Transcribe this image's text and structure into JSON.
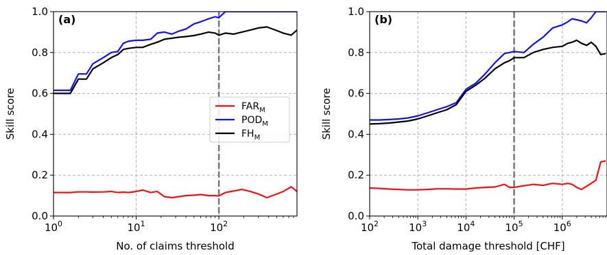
{
  "chart_data": [
    {
      "type": "line",
      "panel_label": "(a)",
      "xlabel": "No. of claims threshold",
      "ylabel": "Skill score",
      "xscale": "log",
      "xlim": [
        1,
        880
      ],
      "ylim": [
        0.0,
        1.0
      ],
      "x_ticks": [
        1,
        10,
        100
      ],
      "x_tick_labels": [
        {
          "base": "10",
          "exp": "0"
        },
        {
          "base": "10",
          "exp": "1"
        },
        {
          "base": "10",
          "exp": "2"
        }
      ],
      "y_ticks": [
        0.0,
        0.2,
        0.4,
        0.6,
        0.8,
        1.0
      ],
      "y_tick_labels": [
        "0.0",
        "0.2",
        "0.4",
        "0.6",
        "0.8",
        "1.0"
      ],
      "grid": true,
      "vline_x": 100,
      "legend": {
        "placement": "center-right",
        "entries": [
          {
            "base": "FAR",
            "sub": "M",
            "color": "#ee1111"
          },
          {
            "base": "POD",
            "sub": "M",
            "color": "#1111ee"
          },
          {
            "base": "FH",
            "sub": "M",
            "color": "#000000"
          }
        ]
      },
      "series": [
        {
          "key": "FAR",
          "color": "#ee1111",
          "x": [
            1,
            1.6,
            2,
            2.5,
            3,
            4,
            5,
            6,
            7,
            8,
            10,
            12,
            15,
            18,
            22,
            27,
            33,
            40,
            50,
            60,
            75,
            90,
            100,
            120,
            150,
            190,
            240,
            300,
            380,
            480,
            600,
            750,
            880
          ],
          "y": [
            0.115,
            0.115,
            0.118,
            0.118,
            0.117,
            0.118,
            0.12,
            0.115,
            0.117,
            0.115,
            0.12,
            0.127,
            0.115,
            0.12,
            0.095,
            0.09,
            0.095,
            0.1,
            0.102,
            0.105,
            0.1,
            0.1,
            0.098,
            0.115,
            0.122,
            0.13,
            0.12,
            0.108,
            0.09,
            0.105,
            0.12,
            0.143,
            0.12
          ]
        },
        {
          "key": "POD",
          "color": "#1111ee",
          "x": [
            1,
            1.6,
            2,
            2.5,
            3,
            4,
            5,
            6,
            7,
            8,
            10,
            12,
            15,
            18,
            22,
            27,
            33,
            40,
            50,
            60,
            75,
            90,
            100,
            120,
            150,
            190,
            240,
            300,
            380,
            480,
            600,
            750,
            880
          ],
          "y": [
            0.615,
            0.615,
            0.695,
            0.695,
            0.745,
            0.775,
            0.8,
            0.805,
            0.845,
            0.855,
            0.86,
            0.86,
            0.865,
            0.895,
            0.9,
            0.89,
            0.905,
            0.915,
            0.94,
            0.95,
            0.965,
            0.975,
            0.97,
            1.0,
            1.0,
            1.0,
            1.0,
            1.0,
            1.0,
            1.0,
            1.0,
            1.0,
            1.0
          ]
        },
        {
          "key": "FH",
          "color": "#000000",
          "x": [
            1,
            1.6,
            2,
            2.5,
            3,
            4,
            5,
            6,
            7,
            8,
            10,
            12,
            15,
            18,
            22,
            27,
            33,
            40,
            50,
            60,
            75,
            90,
            100,
            120,
            150,
            190,
            240,
            300,
            380,
            480,
            600,
            750,
            880
          ],
          "y": [
            0.6,
            0.6,
            0.67,
            0.67,
            0.72,
            0.75,
            0.775,
            0.79,
            0.815,
            0.82,
            0.825,
            0.825,
            0.84,
            0.85,
            0.865,
            0.87,
            0.875,
            0.878,
            0.883,
            0.89,
            0.9,
            0.895,
            0.885,
            0.895,
            0.89,
            0.9,
            0.91,
            0.92,
            0.925,
            0.91,
            0.895,
            0.885,
            0.91
          ]
        }
      ]
    },
    {
      "type": "line",
      "panel_label": "(b)",
      "xlabel": "Total damage threshold [CHF]",
      "ylabel": "Skill score",
      "xscale": "log",
      "xlim": [
        100,
        8500000
      ],
      "ylim": [
        0.0,
        1.0
      ],
      "x_ticks": [
        100,
        1000,
        10000,
        100000,
        1000000
      ],
      "x_tick_labels": [
        {
          "base": "10",
          "exp": "2"
        },
        {
          "base": "10",
          "exp": "3"
        },
        {
          "base": "10",
          "exp": "4"
        },
        {
          "base": "10",
          "exp": "5"
        },
        {
          "base": "10",
          "exp": "6"
        }
      ],
      "y_ticks": [
        0.0,
        0.2,
        0.4,
        0.6,
        0.8,
        1.0
      ],
      "y_tick_labels": [
        "0.0",
        "0.2",
        "0.4",
        "0.6",
        "0.8",
        "1.0"
      ],
      "grid": true,
      "vline_x": 100000,
      "series": [
        {
          "key": "FAR",
          "color": "#ee1111",
          "x": [
            100,
            160,
            250,
            400,
            630,
            1000,
            1600,
            2500,
            4000,
            6300,
            10000,
            16000,
            25000,
            40000,
            63000,
            80000,
            100000,
            160000,
            250000,
            400000,
            630000,
            1000000,
            1300000,
            1600000,
            2000000,
            2500000,
            3200000,
            4000000,
            5000000,
            6300000,
            8000000
          ],
          "y": [
            0.137,
            0.135,
            0.132,
            0.13,
            0.128,
            0.128,
            0.13,
            0.133,
            0.133,
            0.132,
            0.132,
            0.137,
            0.14,
            0.142,
            0.155,
            0.14,
            0.14,
            0.148,
            0.155,
            0.15,
            0.16,
            0.155,
            0.16,
            0.155,
            0.14,
            0.13,
            0.145,
            0.16,
            0.175,
            0.265,
            0.27
          ]
        },
        {
          "key": "POD",
          "color": "#1111ee",
          "x": [
            100,
            160,
            250,
            400,
            630,
            1000,
            1600,
            2500,
            4000,
            6300,
            10000,
            16000,
            25000,
            40000,
            63000,
            80000,
            100000,
            160000,
            250000,
            400000,
            630000,
            1000000,
            1300000,
            1600000,
            2000000,
            2500000,
            3200000,
            4000000,
            5000000,
            6300000,
            8000000
          ],
          "y": [
            0.47,
            0.47,
            0.472,
            0.475,
            0.48,
            0.49,
            0.505,
            0.52,
            0.535,
            0.555,
            0.62,
            0.65,
            0.695,
            0.75,
            0.795,
            0.8,
            0.805,
            0.8,
            0.84,
            0.875,
            0.92,
            0.935,
            0.95,
            0.965,
            0.96,
            0.955,
            0.945,
            0.97,
            1.0,
            1.0,
            1.0
          ]
        },
        {
          "key": "FH",
          "color": "#000000",
          "x": [
            100,
            160,
            250,
            400,
            630,
            1000,
            1600,
            2500,
            4000,
            6300,
            10000,
            16000,
            25000,
            40000,
            63000,
            80000,
            100000,
            160000,
            250000,
            400000,
            630000,
            1000000,
            1300000,
            1600000,
            2000000,
            2500000,
            3200000,
            4000000,
            5000000,
            6300000,
            8000000
          ],
          "y": [
            0.45,
            0.452,
            0.455,
            0.46,
            0.465,
            0.475,
            0.49,
            0.505,
            0.52,
            0.545,
            0.61,
            0.64,
            0.675,
            0.72,
            0.75,
            0.76,
            0.775,
            0.775,
            0.8,
            0.815,
            0.825,
            0.83,
            0.845,
            0.85,
            0.86,
            0.845,
            0.835,
            0.85,
            0.83,
            0.79,
            0.795
          ]
        }
      ]
    }
  ]
}
